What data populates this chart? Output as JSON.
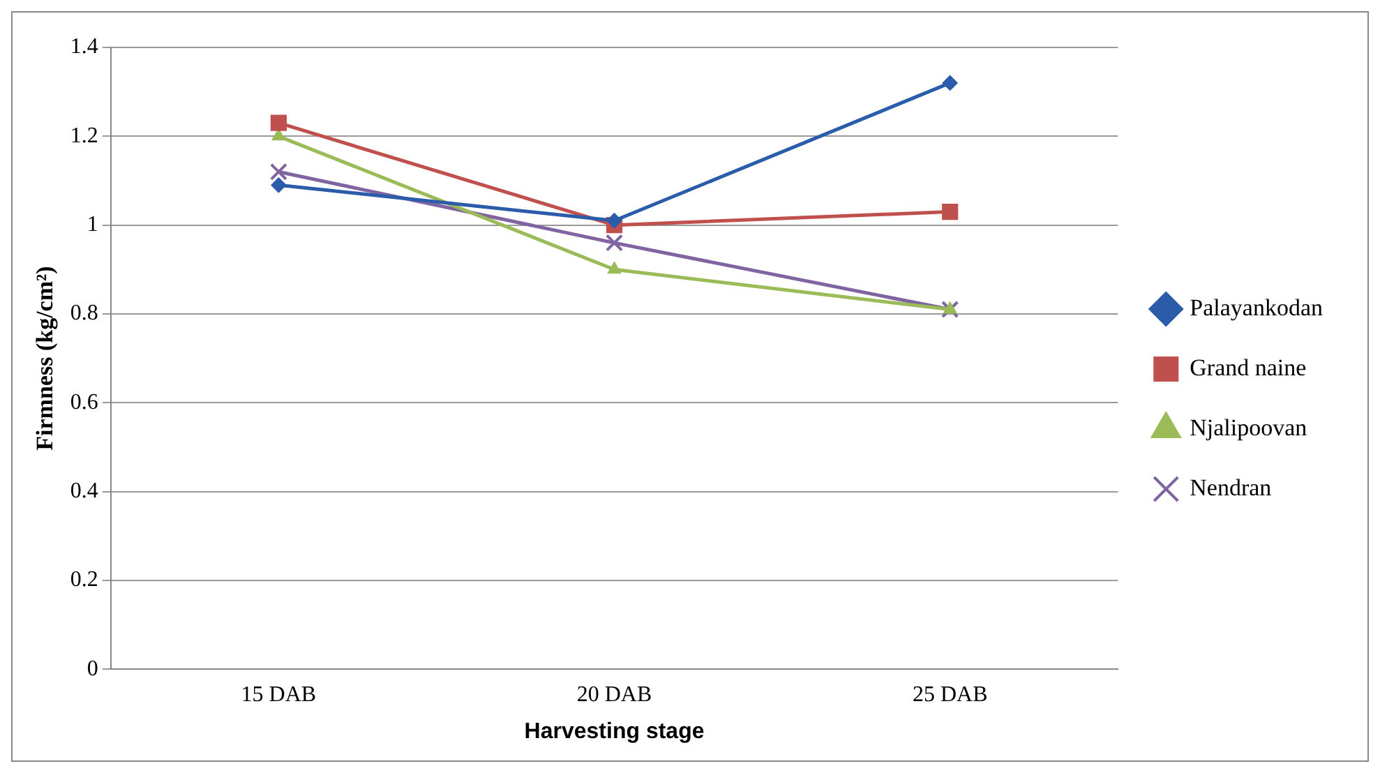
{
  "chart_data": {
    "type": "line",
    "xlabel": "Harvesting stage",
    "ylabel": "Firmness (kg/cm²)",
    "categories": [
      "15 DAB",
      "20 DAB",
      "25 DAB"
    ],
    "series": [
      {
        "name": "Palayankodan",
        "color": "#2a5caa",
        "marker": "diamond",
        "values": [
          1.09,
          1.01,
          1.32
        ]
      },
      {
        "name": "Grand naine",
        "color": "#c0504d",
        "marker": "square",
        "values": [
          1.23,
          1.0,
          1.03
        ]
      },
      {
        "name": "Njalipoovan",
        "color": "#9bbb59",
        "marker": "triangle",
        "values": [
          1.2,
          0.9,
          0.81
        ]
      },
      {
        "name": "Nendran",
        "color": "#8064a2",
        "marker": "cross",
        "values": [
          1.12,
          0.96,
          0.81
        ]
      }
    ],
    "ylim": [
      0,
      1.4
    ],
    "yticks": [
      0,
      0.2,
      0.4,
      0.6,
      0.8,
      1,
      1.2,
      1.4
    ],
    "grid": "y",
    "legend": "right",
    "line_style": "solid"
  }
}
